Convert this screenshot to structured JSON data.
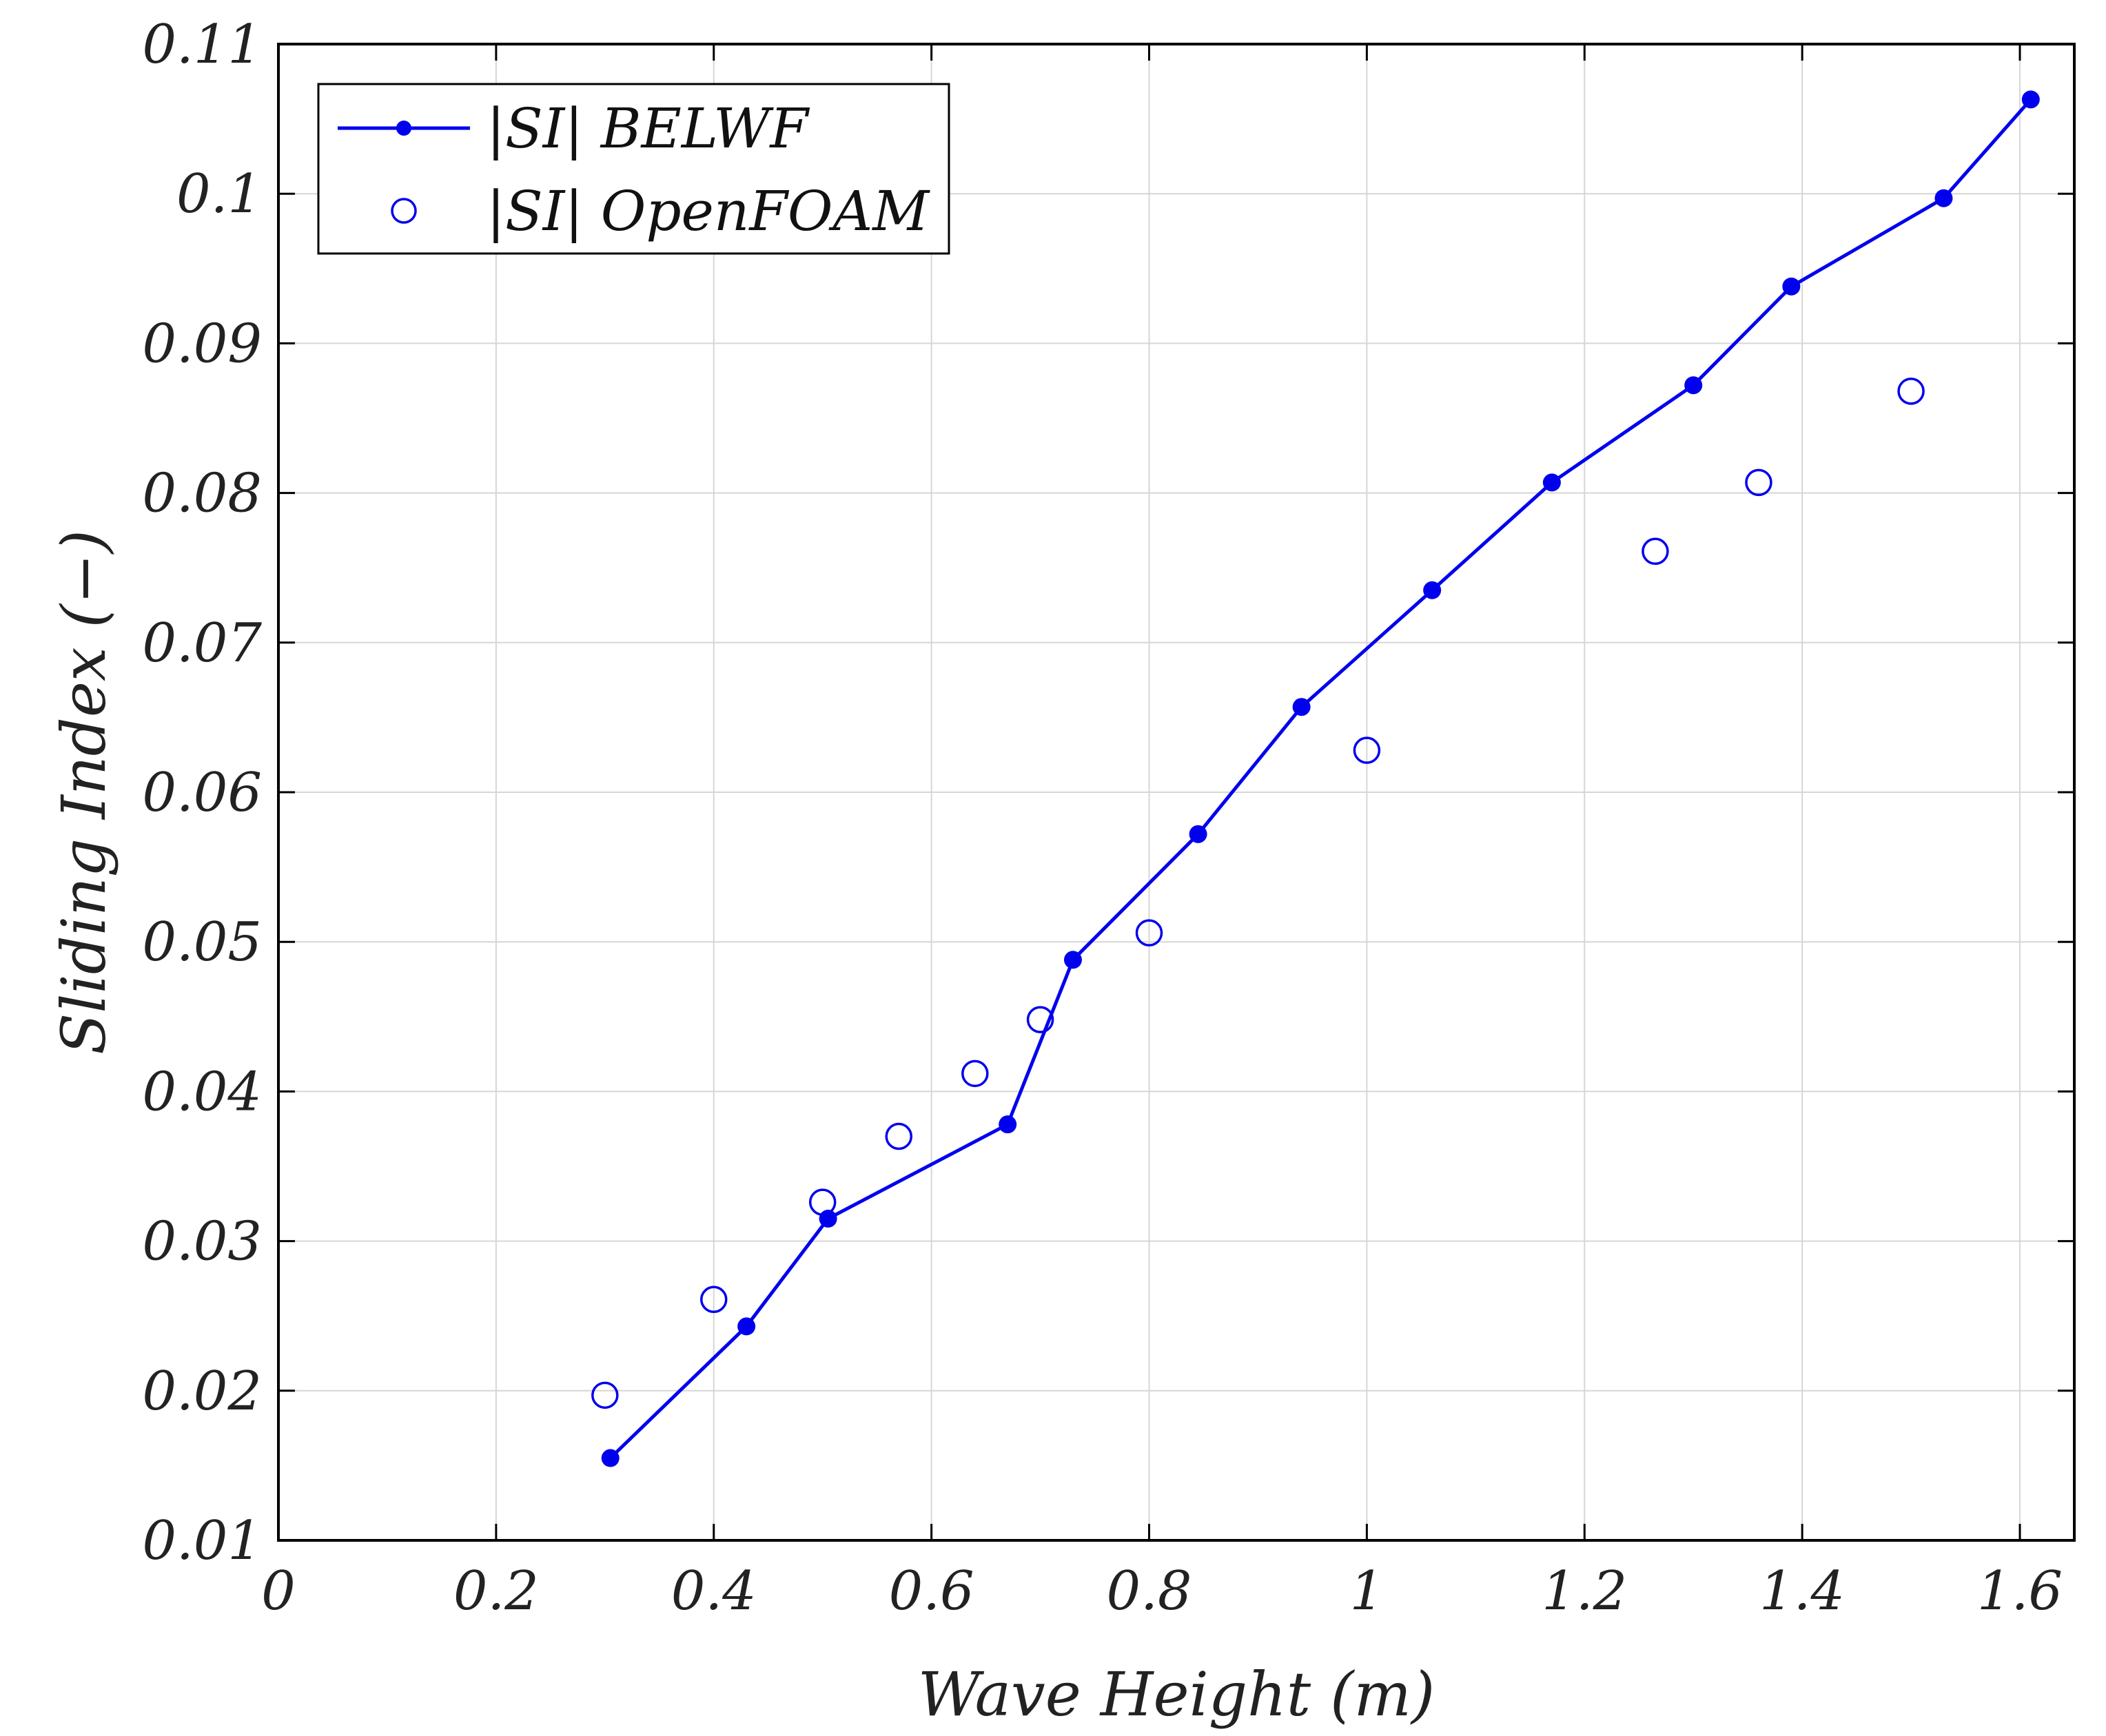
{
  "chart_data": {
    "type": "line",
    "xlabel": "Wave Height (m)",
    "ylabel": "Sliding Index (−)",
    "xlim": [
      0,
      1.65
    ],
    "ylim": [
      0.01,
      0.11
    ],
    "x_ticks": [
      0,
      0.2,
      0.4,
      0.6,
      0.8,
      1,
      1.2,
      1.4,
      1.6
    ],
    "x_tick_labels": [
      "0",
      "0.2",
      "0.4",
      "0.6",
      "0.8",
      "1",
      "1.2",
      "1.4",
      "1.6"
    ],
    "y_ticks": [
      0.01,
      0.02,
      0.03,
      0.04,
      0.05,
      0.06,
      0.07,
      0.08,
      0.09,
      0.1,
      0.11
    ],
    "y_tick_labels": [
      "0.01",
      "0.02",
      "0.03",
      "0.04",
      "0.05",
      "0.06",
      "0.07",
      "0.08",
      "0.09",
      "0.1",
      "0.11"
    ],
    "grid": true,
    "legend_position": "top-left",
    "series": [
      {
        "name": "|SI| BELWF",
        "style": "line-with-filled-markers",
        "color": "#0000ee",
        "x": [
          0.305,
          0.43,
          0.505,
          0.67,
          0.73,
          0.845,
          0.94,
          1.06,
          1.17,
          1.3,
          1.39,
          1.53,
          1.61
        ],
        "y": [
          0.0155,
          0.0243,
          0.0315,
          0.0378,
          0.0488,
          0.0572,
          0.0657,
          0.0735,
          0.0807,
          0.0872,
          0.0938,
          0.0997,
          0.1063
        ]
      },
      {
        "name": "|SI| OpenFOAM",
        "style": "open-circles",
        "color": "#0000ee",
        "x": [
          0.3,
          0.4,
          0.5,
          0.57,
          0.64,
          0.7,
          0.8,
          1.0,
          1.265,
          1.36,
          1.5
        ],
        "y": [
          0.0197,
          0.0261,
          0.0326,
          0.037,
          0.0412,
          0.0448,
          0.0506,
          0.0628,
          0.0761,
          0.0807,
          0.0868
        ]
      }
    ]
  }
}
